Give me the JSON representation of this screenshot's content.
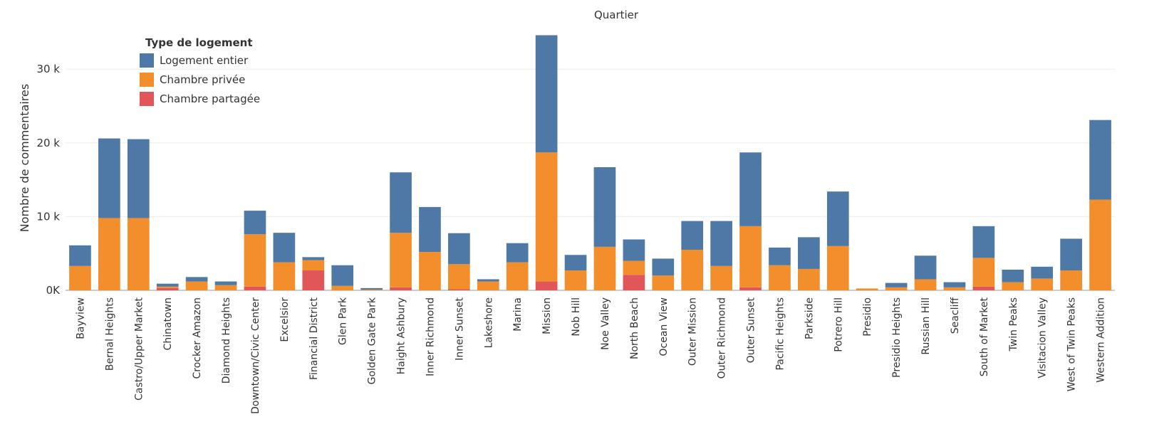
{
  "chart_data": {
    "type": "bar",
    "stacked": true,
    "title": "Quartier",
    "ylabel": "Nombre de commentaires",
    "xlabel": "",
    "ylim": [
      0,
      36000
    ],
    "yticks": [
      0,
      10000,
      20000,
      30000
    ],
    "ytick_labels": [
      "0K",
      "10 k",
      "20 k",
      "30 k"
    ],
    "grid": true,
    "legend": {
      "title": "Type de logement",
      "position": "top-left"
    },
    "categories": [
      "Bayview",
      "Bernal Heights",
      "Castro/Upper Market",
      "Chinatown",
      "Crocker Amazon",
      "Diamond Heights",
      "Downtown/Civic Center",
      "Excelsior",
      "Financial District",
      "Glen Park",
      "Golden Gate Park",
      "Haight Ashbury",
      "Inner Richmond",
      "Inner Sunset",
      "Lakeshore",
      "Marina",
      "Mission",
      "Nob Hill",
      "Noe Valley",
      "North Beach",
      "Ocean View",
      "Outer Mission",
      "Outer Richmond",
      "Outer Sunset",
      "Pacific Heights",
      "Parkside",
      "Potrero Hill",
      "Presidio",
      "Presidio Heights",
      "Russian Hill",
      "Seacliff",
      "South of Market",
      "Twin Peaks",
      "Visitacion Valley",
      "West of Twin Peaks",
      "Western Addition"
    ],
    "series": [
      {
        "name": "Chambre partagée",
        "color": "#e15759",
        "values": [
          0,
          0,
          0,
          300,
          0,
          0,
          500,
          0,
          2700,
          0,
          0,
          400,
          0,
          150,
          0,
          0,
          1200,
          0,
          0,
          2100,
          0,
          0,
          0,
          400,
          0,
          0,
          0,
          0,
          0,
          0,
          0,
          500,
          0,
          0,
          0,
          0
        ]
      },
      {
        "name": "Chambre privée",
        "color": "#f28e2b",
        "values": [
          3300,
          9800,
          9800,
          200,
          1200,
          700,
          7100,
          3800,
          1400,
          600,
          100,
          7400,
          5200,
          3400,
          1200,
          3800,
          17500,
          2700,
          5900,
          1900,
          2000,
          5500,
          3300,
          8300,
          3400,
          2900,
          6000,
          250,
          400,
          1500,
          400,
          3900,
          1100,
          1600,
          2700,
          12300
        ]
      },
      {
        "name": "Logement entier",
        "color": "#4e79a7",
        "values": [
          2800,
          10800,
          10700,
          400,
          600,
          500,
          3200,
          4000,
          400,
          2800,
          200,
          8200,
          6100,
          4200,
          300,
          2600,
          15900,
          2100,
          10800,
          2900,
          2300,
          3900,
          6100,
          10000,
          2400,
          4300,
          7400,
          0,
          600,
          3200,
          700,
          4300,
          1700,
          1600,
          4300,
          10800
        ]
      }
    ]
  }
}
